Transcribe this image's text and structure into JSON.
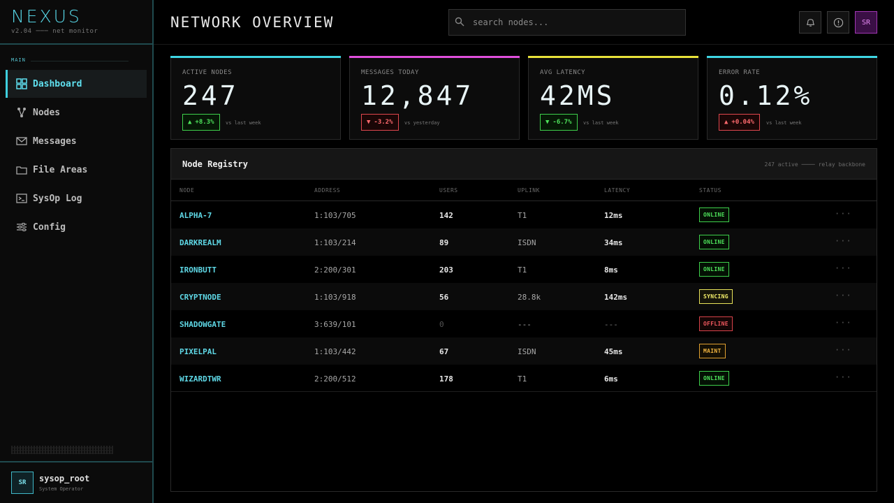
{
  "brand": {
    "title": "NEXUS",
    "subtitle": "v2.04 ─── net monitor"
  },
  "sidebar": {
    "section_label": "MAIN",
    "items": [
      {
        "label": "Dashboard",
        "icon": "grid-icon",
        "active": true
      },
      {
        "label": "Nodes",
        "icon": "network-icon",
        "active": false
      },
      {
        "label": "Messages",
        "icon": "mail-icon",
        "active": false
      },
      {
        "label": "File Areas",
        "icon": "folder-icon",
        "active": false
      },
      {
        "label": "SysOp Log",
        "icon": "terminal-icon",
        "active": false
      },
      {
        "label": "Config",
        "icon": "sliders-icon",
        "active": false
      }
    ],
    "user": {
      "initials": "SR",
      "name": "sysop_root",
      "role": "System Operator"
    }
  },
  "header": {
    "title": "NETWORK OVERVIEW",
    "search_placeholder": "search nodes...",
    "avatar_initials": "SR"
  },
  "stats": [
    {
      "label": "ACTIVE NODES",
      "value": "247",
      "delta": "+8.3%",
      "note": "vs last week",
      "accent": "#3fd6e4"
    },
    {
      "label": "MESSAGES TODAY",
      "value": "12,847",
      "delta": "-3.2%",
      "note": "vs yesterday",
      "accent": "#e04fdc"
    },
    {
      "label": "AVG LATENCY",
      "value": "42MS",
      "delta": "-6.7%",
      "note": "vs last week",
      "accent": "#e8e23a"
    },
    {
      "label": "ERROR RATE",
      "value": "0.12%",
      "delta": "+0.04%",
      "note": "vs last week",
      "accent": "#3fd6e4"
    }
  ],
  "registry": {
    "title": "Node Registry",
    "meta": "247 active ──── relay backbone",
    "columns": [
      "NODE",
      "ADDRESS",
      "USERS",
      "UPLINK",
      "LATENCY",
      "STATUS"
    ],
    "rows": [
      {
        "node": "ALPHA-7",
        "address": "1:103/705",
        "users": "142",
        "uplink": "T1",
        "latency": "12ms",
        "status": "ONLINE"
      },
      {
        "node": "DARKREALM",
        "address": "1:103/214",
        "users": "89",
        "uplink": "ISDN",
        "latency": "34ms",
        "status": "ONLINE"
      },
      {
        "node": "IRONBUTT",
        "address": "2:200/301",
        "users": "203",
        "uplink": "T1",
        "latency": "8ms",
        "status": "ONLINE"
      },
      {
        "node": "CRYPTNODE",
        "address": "1:103/918",
        "users": "56",
        "uplink": "28.8k",
        "latency": "142ms",
        "status": "SYNCING"
      },
      {
        "node": "SHADOWGATE",
        "address": "3:639/101",
        "users": "0",
        "uplink": "---",
        "latency": "---",
        "status": "OFFLINE"
      },
      {
        "node": "PIXELPAL",
        "address": "1:103/442",
        "users": "67",
        "uplink": "ISDN",
        "latency": "45ms",
        "status": "MAINT"
      },
      {
        "node": "WIZARDTWR",
        "address": "2:200/512",
        "users": "178",
        "uplink": "T1",
        "latency": "6ms",
        "status": "ONLINE"
      }
    ],
    "row_action": "···"
  }
}
